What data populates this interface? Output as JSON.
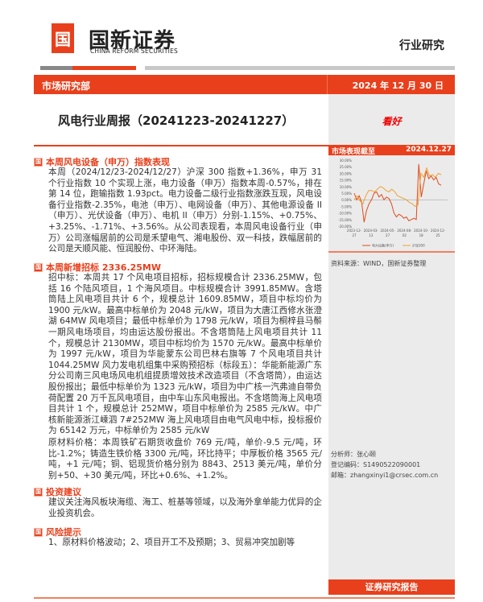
{
  "header": {
    "logo_mark": "国新",
    "company_cn": "国新证券",
    "company_en": "CHINA REFORM SECURITIES",
    "doc_type": "行业研究",
    "department": "市场研究部",
    "date": "2024 年 12 月 30 日"
  },
  "title": "风电行业周报（20241223-20241227）",
  "rating": "看好",
  "sections": [
    {
      "heading": "本周风电设备（申万）指数表现",
      "paragraphs": [
        "本周（2024/12/23-2024/12/27）沪深 300 指数+1.36%，申万 31 个行业指数 10 个实现上涨，电力设备（申万）指数本周-0.57%，排在第 14 位，跑输指数 1.93pct。电力设备二级行业指数涨跌互现，风电设备行业指数-2.35%，电池（申万）、电网设备（申万）、其他电源设备 II（申万）、光伏设备（申万）、电机 II（申万）分别-1.15%、+0.75%、+3.25%、-1.71%、+3.56%。从公司表现看，本周风电设备行业（申万）公司涨幅居前的公司是禾望电气、湘电股份、双一科技，跌幅居前的公司是天顺风能、恒润股份、中环海陆。"
      ]
    },
    {
      "heading": "本周新增招标 2336.25MW",
      "paragraphs": [
        "招中标：本周共 17 个风电项目招标，招标规模合计 2336.25MW，包括 16 个陆风项目，1 个海风项目。中标规模合计 3991.85MW。含塔筒陆上风电项目共计 6 个，规模总计 1609.85MW，项目中标均价为 1900 元/kW。最高中标单价为 2048 元/kW，项目为大唐江西修水张澄湖 64MW 风电项目；最低中标单价为 1798 元/kW，项目为桐梓县马鬃一期风电场项目，均由运达股份报出。不含塔筒陆上风电项目共计 11 个，规模总计 2130MW，项目中标均价为 1570 元/kW。最高中标单价为 1997 元/kW，项目为华能蒙东公司巴林右旗等 7 个风电项目共计 1044.25MW 风力发电机组集中采购预招标（标段五）：华能新能源广东分公司南三风电场风电机组提质增效技术改造项目（不含塔筒），由运达股份报出；最低中标单价为 1323 元/kW，项目为中广核一汽弗迪自带负荷配置 20 万千瓦风电项目，由中车山东风电报出。不含塔筒海上风电项目共计 1 个，规模总计 252MW，项目中标单价为 2585 元/kW。中广核新能源浙江嵊泗 7#252MW 海上风电项目由电气风电中标，投标报价为 65142 万元，中标单价为 2585 元/kW",
        "原材料价格：本周铁矿石期货收盘价 769 元/吨，单价-9.5 元/吨，环比-1.2%；铸造生铁价格 3300 元/吨，环比持平；中厚板价格 3565 元/吨，+1 元/吨；铜、铝现货价格分别为 8843、2513 美元/吨，单价分别+50、+30 美元/吨，环比+0.6%、+1.2%。"
      ]
    },
    {
      "heading": "投资建议",
      "paragraphs": [
        "建议关注海风板块海缆、海工、桩基等领域，以及海外拿单能力优异的企业投资机会。"
      ]
    },
    {
      "heading": "风险提示",
      "paragraphs": [
        "1、原材料价格波动；2、项目开工不及预期；3、贸易冲突加剧等"
      ]
    }
  ],
  "sidebar": {
    "market_label": "市场表现截至",
    "market_date": "2024.12.27",
    "source": "资料来源：WIND，国新证券整理",
    "analyst": "分析师：张心颐",
    "registration": "登记编码：S1490522090001",
    "email": "邮箱：zhangxinyi1@crsec.com.cn",
    "footer": "证券研究报告"
  },
  "chart_data": {
    "type": "line",
    "ylim": [
      -20,
      30
    ],
    "yticks": [
      "30.00%",
      "25.00%",
      "20.00%",
      "15.00%",
      "10.00%",
      "5.00%",
      "0.00%",
      "-5.00%",
      "-10.00%",
      "-15.00%",
      "-20.00%"
    ],
    "xticks": [
      [
        "2023-12-",
        "27"
      ],
      [
        "2024-03-",
        "13"
      ],
      [
        "2024-05-",
        "27"
      ],
      [
        "2024-08-",
        "02"
      ],
      [
        "2024-10-",
        "18"
      ],
      [
        "2024-12-",
        "25"
      ]
    ],
    "series": [
      {
        "name": "电力设备(申万)",
        "color": "#e04a1c",
        "values": [
          5,
          0,
          3,
          -2,
          -17,
          -8,
          -3,
          0,
          5,
          6,
          2,
          4,
          0,
          2,
          1,
          -3,
          -10,
          -13,
          -11,
          -12,
          -14,
          -13,
          -16,
          -15,
          -14,
          -15,
          27,
          2,
          12,
          22,
          16,
          18,
          15,
          17,
          12,
          11
        ]
      },
      {
        "name": "沪深300",
        "color": "#f0a030",
        "values": [
          0,
          3,
          -1,
          -3,
          3,
          7,
          7,
          6,
          8,
          10,
          9,
          7,
          6,
          8,
          6,
          3,
          2,
          1,
          0,
          -2,
          -3,
          -5,
          -4,
          20,
          17,
          24,
          18,
          19,
          17,
          20,
          19
        ]
      }
    ],
    "grid": false,
    "legend": "bottom"
  }
}
